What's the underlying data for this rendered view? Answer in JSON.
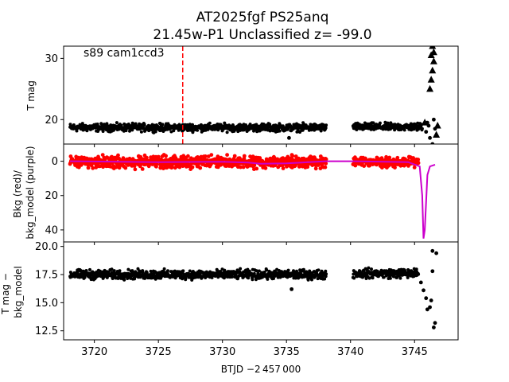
{
  "figure": {
    "title_line1": "AT2025fgf  PS25anq",
    "title_line2": "21.45w-P1 Unclassified z= -99.0",
    "xlabel": "BTJD −2 457 000",
    "x_ticks": [
      "3720",
      "3725",
      "3730",
      "3735",
      "3740",
      "3745"
    ]
  },
  "colors": {
    "points": "#000000",
    "background_points": "#ff0000",
    "background_model": "#cc00cc",
    "marker_line": "#ff0000"
  },
  "chart_data": [
    {
      "type": "scatter",
      "panel": "top",
      "annotation": "s89 cam1ccd3",
      "ylabel": "T mag",
      "y_inverted": true,
      "xlim": [
        3717.6,
        3748.4
      ],
      "ylim": [
        32.0,
        16.0
      ],
      "y_ticks": [
        "20",
        "30"
      ],
      "y_tick_values": [
        20,
        30
      ],
      "vertical_line_x": 3726.9,
      "segments": [
        {
          "x_start": 3718.1,
          "x_end": 3738.1,
          "y_center": 18.7,
          "y_spread": 0.9
        },
        {
          "x_start": 3740.2,
          "x_end": 3745.6,
          "y_center": 18.8,
          "y_spread": 0.9
        }
      ],
      "flare_points": [
        [
          3745.9,
          18.0
        ],
        [
          3746.0,
          19.5
        ],
        [
          3746.2,
          17.0
        ],
        [
          3746.4,
          16.0
        ],
        [
          3746.5,
          20.0
        ],
        [
          3746.6,
          18.5
        ],
        [
          3746.3,
          14.0
        ],
        [
          3746.1,
          19.0
        ],
        [
          3735.2,
          17.0
        ]
      ],
      "upper_limits": [
        [
          3745.8,
          19.5
        ],
        [
          3746.2,
          25.0
        ],
        [
          3746.3,
          26.5
        ],
        [
          3746.4,
          28.0
        ],
        [
          3746.5,
          29.5
        ],
        [
          3746.3,
          30.5
        ],
        [
          3746.5,
          31.0
        ],
        [
          3746.4,
          32.0
        ],
        [
          3746.7,
          17.5
        ],
        [
          3746.8,
          19.0
        ]
      ]
    },
    {
      "type": "scatter",
      "panel": "middle",
      "ylabel": "Bkg (red)/\nbkg_model (purple)",
      "xlim": [
        3717.6,
        3748.4
      ],
      "ylim": [
        -10,
        47
      ],
      "y_ticks": [
        "0",
        "20",
        "40"
      ],
      "y_tick_values": [
        0,
        20,
        40
      ],
      "series": [
        {
          "name": "Bkg",
          "segments": [
            {
              "x_start": 3718.1,
              "x_end": 3738.1,
              "y_center": 0.5,
              "y_spread": 5
            },
            {
              "x_start": 3740.2,
              "x_end": 3745.3,
              "y_center": 0.5,
              "y_spread": 4
            }
          ]
        },
        {
          "name": "bkg_model",
          "x": [
            3718.1,
            3725,
            3730,
            3732,
            3733,
            3735,
            3738.1,
            3740.2,
            3744.5,
            3745.4,
            3745.6,
            3745.7,
            3745.8,
            3746.0,
            3746.2,
            3746.6
          ],
          "y": [
            0,
            0.5,
            0.3,
            0.8,
            1.5,
            1.2,
            0,
            0,
            0.5,
            3,
            20,
            45,
            40,
            8,
            3,
            2
          ]
        }
      ]
    },
    {
      "type": "scatter",
      "panel": "bottom",
      "ylabel": "T mag −\nbkg_model",
      "y_inverted": true,
      "xlim": [
        3717.6,
        3748.4
      ],
      "ylim": [
        20.4,
        11.7
      ],
      "y_ticks": [
        "12.5",
        "15.0",
        "17.5",
        "20.0"
      ],
      "y_tick_values": [
        12.5,
        15.0,
        17.5,
        20.0
      ],
      "segments": [
        {
          "x_start": 3718.1,
          "x_end": 3738.1,
          "y_center": 17.5,
          "y_spread": 0.6
        },
        {
          "x_start": 3740.2,
          "x_end": 3745.3,
          "y_center": 17.6,
          "y_spread": 0.6
        }
      ],
      "flare_points": [
        [
          3735.4,
          16.2
        ],
        [
          3745.5,
          16.8
        ],
        [
          3745.7,
          16.1
        ],
        [
          3745.9,
          15.4
        ],
        [
          3746.0,
          14.4
        ],
        [
          3746.2,
          14.6
        ],
        [
          3746.3,
          15.2
        ],
        [
          3746.4,
          19.6
        ],
        [
          3746.5,
          12.8
        ],
        [
          3746.6,
          13.2
        ],
        [
          3746.7,
          19.4
        ],
        [
          3746.4,
          17.8
        ]
      ]
    }
  ]
}
